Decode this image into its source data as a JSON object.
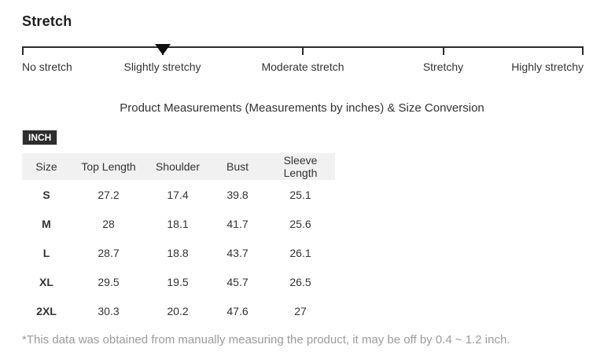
{
  "heading": "Stretch",
  "stretch_scale": {
    "labels": [
      "No stretch",
      "Slightly stretchy",
      "Moderate stretch",
      "Stretchy",
      "Highly stretchy"
    ],
    "selected": "Slightly stretchy",
    "selected_index": 1,
    "marker_icon": "down-triangle"
  },
  "section_title": "Product Measurements (Measurements by inches) & Size Conversion",
  "unit_badge": "INCH",
  "table": {
    "headers": [
      "Size",
      "Top Length",
      "Shoulder",
      "Bust",
      "Sleeve Length"
    ],
    "rows": [
      [
        "S",
        "27.2",
        "17.4",
        "39.8",
        "25.1"
      ],
      [
        "M",
        "28",
        "18.1",
        "41.7",
        "25.6"
      ],
      [
        "L",
        "28.7",
        "18.8",
        "43.7",
        "26.1"
      ],
      [
        "XL",
        "29.5",
        "19.5",
        "45.7",
        "26.5"
      ],
      [
        "2XL",
        "30.3",
        "20.2",
        "47.6",
        "27"
      ]
    ]
  },
  "footnote": "*This data was obtained from manually measuring the product, it may be off by 0.4 ~ 1.2 inch.",
  "colors": {
    "background": "#ffffff",
    "text": "#333333",
    "heading_text": "#1f1f1f",
    "scale_line": "#2b2b2b",
    "marker": "#111111",
    "badge_bg": "#2d2d2d",
    "badge_text": "#ffffff",
    "table_header_bg": "#f1f1f1",
    "footnote_text": "#9c9c9c"
  }
}
